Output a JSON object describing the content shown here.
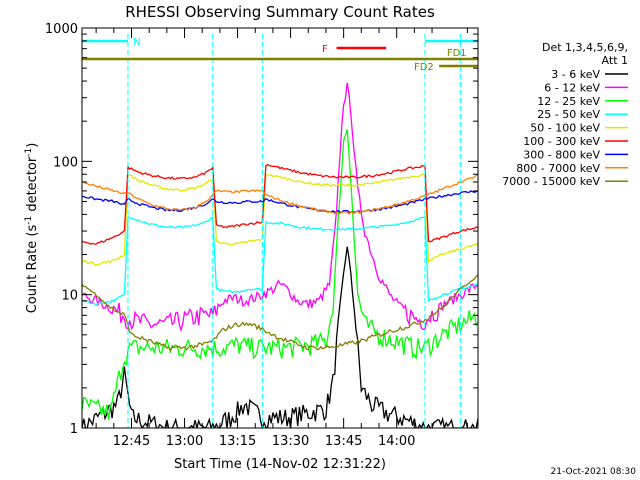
{
  "chart_data": {
    "type": "line",
    "title": "RHESSI Observing Summary Count Rates",
    "xlabel": "Start Time (14-Nov-02 12:31:22)",
    "ylabel_pre": "Count Rate (s",
    "ylabel_sup1": "-1",
    "ylabel_mid": " detector",
    "ylabel_sup2": "-1",
    "ylabel_post": ")",
    "y_scale": "log",
    "ylim": [
      1,
      1000
    ],
    "y_ticks": [
      {
        "value": 1,
        "label": "1"
      },
      {
        "value": 10,
        "label": "10"
      },
      {
        "value": 100,
        "label": "100"
      },
      {
        "value": 1000,
        "label": "1000"
      }
    ],
    "xlim_minutes": [
      -14,
      98
    ],
    "x_ticks": [
      {
        "t": 0,
        "label": "12:45"
      },
      {
        "t": 15,
        "label": "13:00"
      },
      {
        "t": 30,
        "label": "13:15"
      },
      {
        "t": 45,
        "label": "13:30"
      },
      {
        "t": 60,
        "label": "13:45"
      },
      {
        "t": 75,
        "label": "14:00"
      }
    ],
    "legend": {
      "position": "right",
      "header": [
        "Det 1,3,4,5,6,9,",
        "Att 1"
      ],
      "entries": [
        {
          "label": "3 - 6 keV",
          "color": "#000000"
        },
        {
          "label": "6 - 12 keV",
          "color": "#ff00ff"
        },
        {
          "label": "12 - 25 keV",
          "color": "#00ff00"
        },
        {
          "label": "25 - 50 keV",
          "color": "#00ffff"
        },
        {
          "label": "50 - 100 keV",
          "color": "#e6e600"
        },
        {
          "label": "100 - 300 keV",
          "color": "#ff0000"
        },
        {
          "label": "300 - 800 keV",
          "color": "#0000ff"
        },
        {
          "label": "800 - 7000 keV",
          "color": "#ff8000"
        },
        {
          "label": "7000 - 15000 keV",
          "color": "#808000"
        }
      ]
    },
    "flag_bars": [
      {
        "label": "N",
        "color": "#00ffff",
        "segments": [
          [
            -14,
            -1
          ],
          [
            83,
            98
          ]
        ],
        "level": 1
      },
      {
        "label": "F",
        "color": "#ff0000",
        "segments": [
          [
            58,
            72
          ]
        ],
        "level": 2
      },
      {
        "label": "FD1",
        "color": "#808000",
        "segments": [
          [
            -14,
            98
          ]
        ],
        "level": 3
      },
      {
        "label": "FD2",
        "color": "#808000",
        "segments": [
          [
            87,
            98
          ]
        ],
        "level": 4
      }
    ],
    "night_boundaries_minutes": [
      -1,
      23,
      83
    ],
    "saa_boundaries_minutes": [
      37,
      93
    ],
    "series": [
      {
        "name": "3 - 6 keV",
        "color": "#000000",
        "points": [
          [
            -14,
            1
          ],
          [
            -4,
            1.5
          ],
          [
            -2,
            2.5
          ],
          [
            0,
            1.2
          ],
          [
            10,
            1
          ],
          [
            23,
            1
          ],
          [
            28,
            1.2
          ],
          [
            32,
            1.5
          ],
          [
            37,
            1.2
          ],
          [
            44,
            1.2
          ],
          [
            50,
            1.3
          ],
          [
            55,
            1.4
          ],
          [
            57,
            2.2
          ],
          [
            59,
            8
          ],
          [
            61,
            24
          ],
          [
            63,
            8
          ],
          [
            65,
            2
          ],
          [
            68,
            1.5
          ],
          [
            72,
            1.3
          ],
          [
            76,
            1.2
          ],
          [
            83,
            1
          ],
          [
            93,
            1
          ],
          [
            98,
            1
          ]
        ]
      },
      {
        "name": "6 - 12 keV",
        "color": "#ff00ff",
        "points": [
          [
            -14,
            10
          ],
          [
            -10,
            9
          ],
          [
            -6,
            8
          ],
          [
            -2,
            7
          ],
          [
            0,
            6.5
          ],
          [
            5,
            6
          ],
          [
            10,
            6
          ],
          [
            15,
            6.5
          ],
          [
            20,
            7
          ],
          [
            23,
            7
          ],
          [
            26,
            9
          ],
          [
            29,
            9.5
          ],
          [
            32,
            9
          ],
          [
            35,
            9.5
          ],
          [
            37,
            10
          ],
          [
            40,
            11
          ],
          [
            42,
            12
          ],
          [
            44,
            11
          ],
          [
            47,
            9
          ],
          [
            50,
            8.5
          ],
          [
            53,
            9
          ],
          [
            56,
            12
          ],
          [
            58,
            40
          ],
          [
            59,
            120
          ],
          [
            60,
            280
          ],
          [
            61,
            360
          ],
          [
            62,
            250
          ],
          [
            63,
            120
          ],
          [
            64,
            60
          ],
          [
            66,
            30
          ],
          [
            68,
            20
          ],
          [
            70,
            14
          ],
          [
            73,
            10
          ],
          [
            76,
            8
          ],
          [
            79,
            7
          ],
          [
            81,
            6.5
          ],
          [
            83,
            6.5
          ],
          [
            87,
            8
          ],
          [
            93,
            10
          ],
          [
            98,
            12
          ]
        ]
      },
      {
        "name": "12 - 25 keV",
        "color": "#00ff00",
        "points": [
          [
            -14,
            1.5
          ],
          [
            -6,
            1.3
          ],
          [
            -2,
            3.5
          ],
          [
            0,
            4
          ],
          [
            5,
            4
          ],
          [
            10,
            4
          ],
          [
            15,
            4
          ],
          [
            20,
            4
          ],
          [
            23,
            4
          ],
          [
            26,
            4
          ],
          [
            30,
            4.2
          ],
          [
            35,
            4
          ],
          [
            37,
            4
          ],
          [
            44,
            4
          ],
          [
            50,
            4.2
          ],
          [
            55,
            4.5
          ],
          [
            57,
            8
          ],
          [
            59,
            60
          ],
          [
            60,
            140
          ],
          [
            61,
            180
          ],
          [
            62,
            80
          ],
          [
            63,
            25
          ],
          [
            64,
            10
          ],
          [
            66,
            6
          ],
          [
            70,
            5
          ],
          [
            75,
            4.5
          ],
          [
            80,
            4
          ],
          [
            83,
            4
          ],
          [
            88,
            5
          ],
          [
            93,
            6
          ],
          [
            98,
            7
          ]
        ]
      },
      {
        "name": "25 - 50 keV",
        "color": "#00ffff",
        "points": [
          [
            -14,
            9
          ],
          [
            -10,
            8.5
          ],
          [
            -5,
            9
          ],
          [
            -2,
            10
          ],
          [
            -1,
            38
          ],
          [
            0,
            38
          ],
          [
            5,
            34
          ],
          [
            10,
            32
          ],
          [
            15,
            32
          ],
          [
            20,
            34
          ],
          [
            23,
            38
          ],
          [
            24,
            11
          ],
          [
            27,
            10.5
          ],
          [
            30,
            10.5
          ],
          [
            33,
            11
          ],
          [
            37,
            11
          ],
          [
            38,
            35
          ],
          [
            43,
            34
          ],
          [
            48,
            32
          ],
          [
            53,
            31
          ],
          [
            58,
            31
          ],
          [
            63,
            31
          ],
          [
            68,
            32
          ],
          [
            73,
            33
          ],
          [
            78,
            35
          ],
          [
            83,
            38
          ],
          [
            84,
            9
          ],
          [
            88,
            10
          ],
          [
            93,
            11
          ],
          [
            98,
            12
          ]
        ]
      },
      {
        "name": "50 - 100 keV",
        "color": "#e6e600",
        "points": [
          [
            -14,
            18
          ],
          [
            -10,
            17
          ],
          [
            -5,
            18
          ],
          [
            -2,
            20
          ],
          [
            -1,
            80
          ],
          [
            2,
            72
          ],
          [
            6,
            66
          ],
          [
            10,
            62
          ],
          [
            14,
            61
          ],
          [
            18,
            63
          ],
          [
            21,
            68
          ],
          [
            23,
            74
          ],
          [
            24,
            25
          ],
          [
            27,
            24
          ],
          [
            30,
            24
          ],
          [
            33,
            25
          ],
          [
            37,
            26
          ],
          [
            38,
            80
          ],
          [
            43,
            75
          ],
          [
            48,
            70
          ],
          [
            53,
            67
          ],
          [
            58,
            66
          ],
          [
            63,
            66
          ],
          [
            68,
            68
          ],
          [
            73,
            72
          ],
          [
            78,
            76
          ],
          [
            83,
            80
          ],
          [
            84,
            18
          ],
          [
            88,
            20
          ],
          [
            93,
            22
          ],
          [
            98,
            24
          ]
        ]
      },
      {
        "name": "100 - 300 keV",
        "color": "#ff0000",
        "points": [
          [
            -14,
            25
          ],
          [
            -10,
            24
          ],
          [
            -5,
            27
          ],
          [
            -2,
            30
          ],
          [
            -1,
            90
          ],
          [
            2,
            83
          ],
          [
            6,
            78
          ],
          [
            10,
            75
          ],
          [
            14,
            74
          ],
          [
            18,
            76
          ],
          [
            21,
            82
          ],
          [
            23,
            90
          ],
          [
            24,
            33
          ],
          [
            27,
            32
          ],
          [
            30,
            33
          ],
          [
            33,
            34
          ],
          [
            37,
            35
          ],
          [
            38,
            95
          ],
          [
            43,
            88
          ],
          [
            48,
            82
          ],
          [
            53,
            78
          ],
          [
            58,
            76
          ],
          [
            63,
            76
          ],
          [
            68,
            78
          ],
          [
            73,
            82
          ],
          [
            78,
            88
          ],
          [
            83,
            92
          ],
          [
            84,
            25
          ],
          [
            88,
            27
          ],
          [
            93,
            30
          ],
          [
            98,
            32
          ]
        ]
      },
      {
        "name": "300 - 800 keV",
        "color": "#0000ff",
        "points": [
          [
            -14,
            55
          ],
          [
            -10,
            52
          ],
          [
            -5,
            50
          ],
          [
            -2,
            47
          ],
          [
            -1,
            52
          ],
          [
            2,
            48
          ],
          [
            6,
            45
          ],
          [
            10,
            43
          ],
          [
            14,
            43
          ],
          [
            18,
            45
          ],
          [
            21,
            48
          ],
          [
            23,
            52
          ],
          [
            24,
            50
          ],
          [
            27,
            49
          ],
          [
            30,
            49
          ],
          [
            33,
            50
          ],
          [
            37,
            50
          ],
          [
            38,
            52
          ],
          [
            43,
            48
          ],
          [
            48,
            45
          ],
          [
            53,
            43
          ],
          [
            58,
            42
          ],
          [
            63,
            42
          ],
          [
            68,
            43
          ],
          [
            73,
            45
          ],
          [
            78,
            48
          ],
          [
            83,
            52
          ],
          [
            88,
            55
          ],
          [
            93,
            58
          ],
          [
            98,
            60
          ]
        ]
      },
      {
        "name": "800 - 7000 keV",
        "color": "#ff8000",
        "points": [
          [
            -14,
            70
          ],
          [
            -10,
            65
          ],
          [
            -5,
            60
          ],
          [
            -2,
            57
          ],
          [
            -1,
            58
          ],
          [
            2,
            52
          ],
          [
            6,
            47
          ],
          [
            10,
            44
          ],
          [
            14,
            43
          ],
          [
            18,
            45
          ],
          [
            21,
            50
          ],
          [
            23,
            56
          ],
          [
            24,
            60
          ],
          [
            27,
            59
          ],
          [
            30,
            59
          ],
          [
            33,
            60
          ],
          [
            37,
            60
          ],
          [
            38,
            56
          ],
          [
            43,
            50
          ],
          [
            48,
            46
          ],
          [
            53,
            43
          ],
          [
            58,
            41
          ],
          [
            63,
            41
          ],
          [
            68,
            43
          ],
          [
            73,
            46
          ],
          [
            78,
            50
          ],
          [
            83,
            55
          ],
          [
            88,
            62
          ],
          [
            93,
            70
          ],
          [
            98,
            78
          ]
        ]
      },
      {
        "name": "7000 - 15000 keV",
        "color": "#808000",
        "points": [
          [
            -14,
            12
          ],
          [
            -10,
            10
          ],
          [
            -6,
            8
          ],
          [
            -2,
            7
          ],
          [
            0,
            5
          ],
          [
            5,
            4.5
          ],
          [
            10,
            4
          ],
          [
            15,
            4
          ],
          [
            20,
            4.2
          ],
          [
            23,
            4.5
          ],
          [
            26,
            5.5
          ],
          [
            30,
            6
          ],
          [
            34,
            6
          ],
          [
            37,
            5.5
          ],
          [
            40,
            5
          ],
          [
            44,
            4.5
          ],
          [
            50,
            4
          ],
          [
            55,
            4
          ],
          [
            60,
            4.2
          ],
          [
            65,
            4.5
          ],
          [
            70,
            5
          ],
          [
            75,
            5.5
          ],
          [
            80,
            6
          ],
          [
            83,
            6.5
          ],
          [
            88,
            8
          ],
          [
            93,
            11
          ],
          [
            98,
            14
          ]
        ]
      }
    ]
  },
  "footer": {
    "timestamp": "21-Oct-2021 08:30"
  }
}
